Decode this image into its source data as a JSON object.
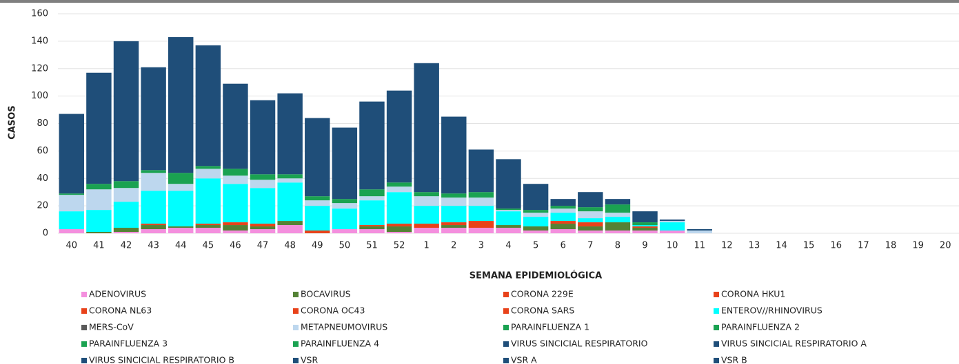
{
  "chart_data": {
    "type": "stacked_bar",
    "y_label": "CASOS",
    "x_label": "SEMANA EPIDEMIOLÓGICA",
    "categories": [
      "40",
      "41",
      "42",
      "43",
      "44",
      "45",
      "46",
      "47",
      "48",
      "49",
      "50",
      "51",
      "52",
      "1",
      "2",
      "3",
      "4",
      "5",
      "6",
      "7",
      "8",
      "9",
      "10",
      "11",
      "12",
      "13",
      "14",
      "15",
      "16",
      "17",
      "18",
      "19",
      "20"
    ],
    "ylim": [
      0,
      160
    ],
    "yticks": [
      0,
      20,
      40,
      60,
      80,
      100,
      120,
      140,
      160
    ],
    "grid": true,
    "series": [
      {
        "name": "ADENOVIRUS",
        "color": "#f48fde",
        "values": [
          3,
          0,
          1,
          3,
          4,
          4,
          2,
          3,
          6,
          0,
          3,
          3,
          1,
          4,
          4,
          4,
          4,
          2,
          3,
          2,
          2,
          2,
          2,
          0,
          0,
          0,
          0,
          0,
          0,
          0,
          0,
          0,
          0
        ]
      },
      {
        "name": "BOCAVIRUS",
        "color": "#548235",
        "values": [
          0,
          1,
          3,
          3,
          1,
          2,
          4,
          2,
          3,
          0,
          0,
          2,
          4,
          0,
          2,
          0,
          2,
          3,
          4,
          3,
          6,
          2,
          0,
          0,
          0,
          0,
          0,
          0,
          0,
          0,
          0,
          0,
          0
        ]
      },
      {
        "name": "CORONA 229E",
        "color": "#e8421a",
        "values": [
          0,
          0,
          0,
          0,
          0,
          0,
          0,
          0,
          0,
          0,
          0,
          0,
          0,
          0,
          0,
          0,
          0,
          0,
          0,
          0,
          0,
          0,
          0,
          0,
          0,
          0,
          0,
          0,
          0,
          0,
          0,
          0,
          0
        ]
      },
      {
        "name": "CORONA HKU1",
        "color": "#e8421a",
        "values": [
          0,
          0,
          0,
          0,
          0,
          0,
          0,
          0,
          0,
          0,
          0,
          0,
          0,
          0,
          0,
          0,
          0,
          0,
          0,
          0,
          0,
          0,
          0,
          0,
          0,
          0,
          0,
          0,
          0,
          0,
          0,
          0,
          0
        ]
      },
      {
        "name": "CORONA NL63",
        "color": "#e8421a",
        "values": [
          0,
          0,
          0,
          0,
          0,
          0,
          0,
          0,
          0,
          0,
          0,
          0,
          0,
          0,
          0,
          0,
          0,
          0,
          0,
          0,
          0,
          0,
          0,
          0,
          0,
          0,
          0,
          0,
          0,
          0,
          0,
          0,
          0
        ]
      },
      {
        "name": "CORONA OC43",
        "color": "#e8421a",
        "values": [
          0,
          0,
          0,
          1,
          0,
          1,
          2,
          2,
          0,
          2,
          0,
          1,
          2,
          3,
          2,
          5,
          0,
          0,
          2,
          3,
          0,
          1,
          0,
          0,
          0,
          0,
          0,
          0,
          0,
          0,
          0,
          0,
          0
        ]
      },
      {
        "name": "CORONA SARS",
        "color": "#e8421a",
        "values": [
          0,
          0,
          0,
          0,
          0,
          0,
          0,
          0,
          0,
          0,
          0,
          0,
          0,
          0,
          0,
          0,
          0,
          0,
          0,
          0,
          0,
          0,
          0,
          0,
          0,
          0,
          0,
          0,
          0,
          0,
          0,
          0,
          0
        ]
      },
      {
        "name": "ENTEROV//RHINOVIRUS",
        "color": "#00ffff",
        "values": [
          13,
          16,
          19,
          24,
          26,
          33,
          28,
          26,
          28,
          18,
          15,
          18,
          23,
          13,
          12,
          11,
          10,
          7,
          6,
          3,
          4,
          1,
          6,
          0,
          0,
          0,
          0,
          0,
          0,
          0,
          0,
          0,
          0
        ]
      },
      {
        "name": "MERS-CoV",
        "color": "#595959",
        "values": [
          0,
          0,
          0,
          0,
          0,
          0,
          0,
          0,
          0,
          0,
          0,
          0,
          0,
          0,
          0,
          0,
          0,
          0,
          0,
          0,
          0,
          0,
          0,
          0,
          0,
          0,
          0,
          0,
          0,
          0,
          0,
          0,
          0
        ]
      },
      {
        "name": "METAPNEUMOVIRUS",
        "color": "#bdd7ee",
        "values": [
          12,
          15,
          10,
          13,
          5,
          7,
          6,
          6,
          3,
          4,
          4,
          3,
          4,
          7,
          6,
          6,
          1,
          3,
          3,
          5,
          3,
          0,
          1,
          2,
          0,
          0,
          0,
          0,
          0,
          0,
          0,
          0,
          0
        ]
      },
      {
        "name": "PARAINFLUENZA 1",
        "color": "#1aa251",
        "values": [
          0,
          0,
          0,
          0,
          0,
          0,
          0,
          0,
          0,
          0,
          0,
          0,
          0,
          0,
          0,
          0,
          0,
          0,
          0,
          0,
          0,
          0,
          0,
          0,
          0,
          0,
          0,
          0,
          0,
          0,
          0,
          0,
          0
        ]
      },
      {
        "name": "PARAINFLUENZA 2",
        "color": "#1aa251",
        "values": [
          0,
          0,
          0,
          0,
          0,
          0,
          0,
          0,
          0,
          0,
          0,
          0,
          0,
          0,
          0,
          0,
          0,
          0,
          0,
          0,
          0,
          0,
          0,
          0,
          0,
          0,
          0,
          0,
          0,
          0,
          0,
          0,
          0
        ]
      },
      {
        "name": "PARAINFLUENZA 3",
        "color": "#1aa251",
        "values": [
          1,
          4,
          5,
          2,
          8,
          2,
          5,
          4,
          3,
          3,
          3,
          5,
          3,
          3,
          3,
          4,
          1,
          2,
          2,
          3,
          6,
          2,
          0,
          0,
          0,
          0,
          0,
          0,
          0,
          0,
          0,
          0,
          0
        ]
      },
      {
        "name": "PARAINFLUENZA 4",
        "color": "#1aa251",
        "values": [
          0,
          0,
          0,
          0,
          0,
          0,
          0,
          0,
          0,
          0,
          0,
          0,
          0,
          0,
          0,
          0,
          0,
          0,
          0,
          0,
          0,
          0,
          0,
          0,
          0,
          0,
          0,
          0,
          0,
          0,
          0,
          0,
          0
        ]
      },
      {
        "name": "VIRUS SINCICIAL RESPIRATORIO",
        "color": "#1f4e79",
        "values": [
          58,
          81,
          102,
          75,
          99,
          88,
          62,
          54,
          59,
          57,
          52,
          64,
          67,
          94,
          56,
          31,
          36,
          19,
          5,
          11,
          4,
          8,
          1,
          1,
          0,
          0,
          0,
          0,
          0,
          0,
          0,
          0,
          0
        ]
      },
      {
        "name": "VIRUS SINCICIAL RESPIRATORIO A",
        "color": "#1f4e79",
        "values": [
          0,
          0,
          0,
          0,
          0,
          0,
          0,
          0,
          0,
          0,
          0,
          0,
          0,
          0,
          0,
          0,
          0,
          0,
          0,
          0,
          0,
          0,
          0,
          0,
          0,
          0,
          0,
          0,
          0,
          0,
          0,
          0,
          0
        ]
      },
      {
        "name": "VIRUS SINCICIAL RESPIRATORIO B",
        "color": "#1f4e79",
        "values": [
          0,
          0,
          0,
          0,
          0,
          0,
          0,
          0,
          0,
          0,
          0,
          0,
          0,
          0,
          0,
          0,
          0,
          0,
          0,
          0,
          0,
          0,
          0,
          0,
          0,
          0,
          0,
          0,
          0,
          0,
          0,
          0,
          0
        ]
      },
      {
        "name": "VSR",
        "color": "#1f4e79",
        "values": [
          0,
          0,
          0,
          0,
          0,
          0,
          0,
          0,
          0,
          0,
          0,
          0,
          0,
          0,
          0,
          0,
          0,
          0,
          0,
          0,
          0,
          0,
          0,
          0,
          0,
          0,
          0,
          0,
          0,
          0,
          0,
          0,
          0
        ]
      },
      {
        "name": "VSR A",
        "color": "#1f4e79",
        "values": [
          0,
          0,
          0,
          0,
          0,
          0,
          0,
          0,
          0,
          0,
          0,
          0,
          0,
          0,
          0,
          0,
          0,
          0,
          0,
          0,
          0,
          0,
          0,
          0,
          0,
          0,
          0,
          0,
          0,
          0,
          0,
          0,
          0
        ]
      },
      {
        "name": "VSR B",
        "color": "#1f4e79",
        "values": [
          0,
          0,
          0,
          0,
          0,
          0,
          0,
          0,
          0,
          0,
          0,
          0,
          0,
          0,
          0,
          0,
          0,
          0,
          0,
          0,
          0,
          0,
          0,
          0,
          0,
          0,
          0,
          0,
          0,
          0,
          0,
          0,
          0
        ]
      }
    ]
  }
}
